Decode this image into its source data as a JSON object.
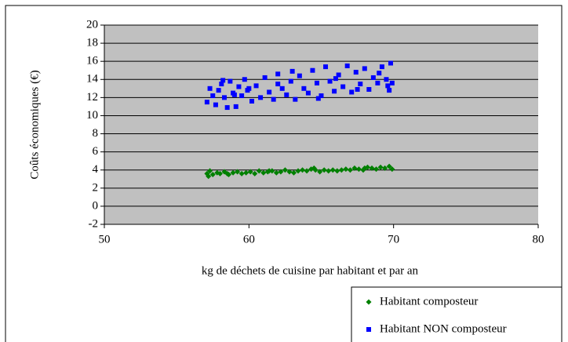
{
  "chart_data": {
    "type": "scatter",
    "xlabel": "kg de déchets de cuisine par habitant et par an",
    "ylabel": "Coûts économiques (€)",
    "xlim": [
      50,
      80
    ],
    "xticks": [
      50,
      60,
      70,
      80
    ],
    "ylim": [
      -2,
      20
    ],
    "yticks": [
      -2,
      0,
      2,
      4,
      6,
      8,
      10,
      12,
      14,
      16,
      18,
      20
    ],
    "grid": true,
    "legend": "bottom-right",
    "series": [
      {
        "name": "Habitant composteur",
        "color": "#008000",
        "marker": "diamond",
        "x": [
          57.1,
          57.3,
          57.5,
          57.8,
          58.0,
          58.3,
          58.6,
          58.9,
          59.2,
          59.5,
          59.8,
          60.1,
          60.4,
          60.7,
          61.0,
          61.3,
          61.6,
          61.9,
          62.2,
          62.5,
          62.8,
          63.1,
          63.4,
          63.7,
          64.0,
          64.3,
          64.6,
          64.9,
          65.2,
          65.5,
          65.8,
          66.1,
          66.4,
          66.7,
          67.0,
          67.3,
          67.6,
          67.9,
          68.2,
          68.5,
          68.8,
          69.1,
          69.4,
          69.7,
          69.9,
          57.2,
          58.5,
          61.4,
          64.5,
          68.0
        ],
        "values": [
          3.6,
          3.9,
          3.5,
          3.7,
          3.6,
          3.8,
          3.5,
          3.7,
          3.8,
          3.6,
          3.7,
          3.8,
          3.6,
          3.9,
          3.7,
          3.8,
          3.9,
          3.7,
          3.8,
          4.0,
          3.8,
          3.7,
          3.9,
          4.0,
          3.9,
          4.1,
          4.0,
          3.8,
          4.0,
          3.9,
          4.0,
          3.9,
          4.0,
          4.1,
          4.0,
          4.2,
          4.1,
          4.0,
          4.3,
          4.2,
          4.1,
          4.3,
          4.2,
          4.4,
          4.1,
          3.3,
          3.6,
          3.9,
          4.2,
          4.2
        ]
      },
      {
        "name": "Habitant NON composteur",
        "color": "#0000ff",
        "marker": "square",
        "x": [
          57.1,
          57.3,
          57.5,
          57.7,
          57.9,
          58.1,
          58.3,
          58.5,
          58.7,
          58.9,
          59.1,
          59.3,
          59.5,
          59.7,
          59.9,
          60.2,
          60.5,
          60.8,
          61.1,
          61.4,
          61.7,
          62.0,
          62.3,
          62.6,
          62.9,
          63.2,
          63.5,
          63.8,
          64.1,
          64.4,
          64.7,
          65.0,
          65.3,
          65.6,
          65.9,
          66.2,
          66.5,
          66.8,
          67.1,
          67.4,
          67.7,
          68.0,
          68.3,
          68.6,
          68.9,
          69.2,
          69.5,
          69.7,
          69.8,
          69.9,
          58.2,
          59.0,
          60.0,
          62.0,
          64.8,
          66.0,
          67.5,
          69.0,
          69.6,
          63.0
        ],
        "values": [
          11.5,
          13.0,
          12.2,
          11.2,
          12.8,
          13.5,
          12.0,
          10.9,
          13.8,
          12.5,
          11.0,
          13.2,
          12.2,
          14.0,
          12.8,
          11.6,
          13.3,
          12.0,
          14.2,
          12.6,
          11.8,
          14.6,
          13.0,
          12.3,
          13.8,
          11.8,
          14.4,
          13.0,
          12.5,
          15.0,
          13.6,
          12.2,
          15.4,
          13.8,
          12.7,
          14.5,
          13.2,
          15.5,
          12.6,
          14.8,
          13.5,
          15.2,
          12.9,
          14.2,
          13.6,
          15.4,
          14.0,
          12.8,
          15.8,
          13.6,
          13.9,
          12.3,
          13.0,
          13.5,
          11.9,
          14.1,
          12.9,
          14.7,
          13.3,
          14.9
        ]
      }
    ]
  }
}
